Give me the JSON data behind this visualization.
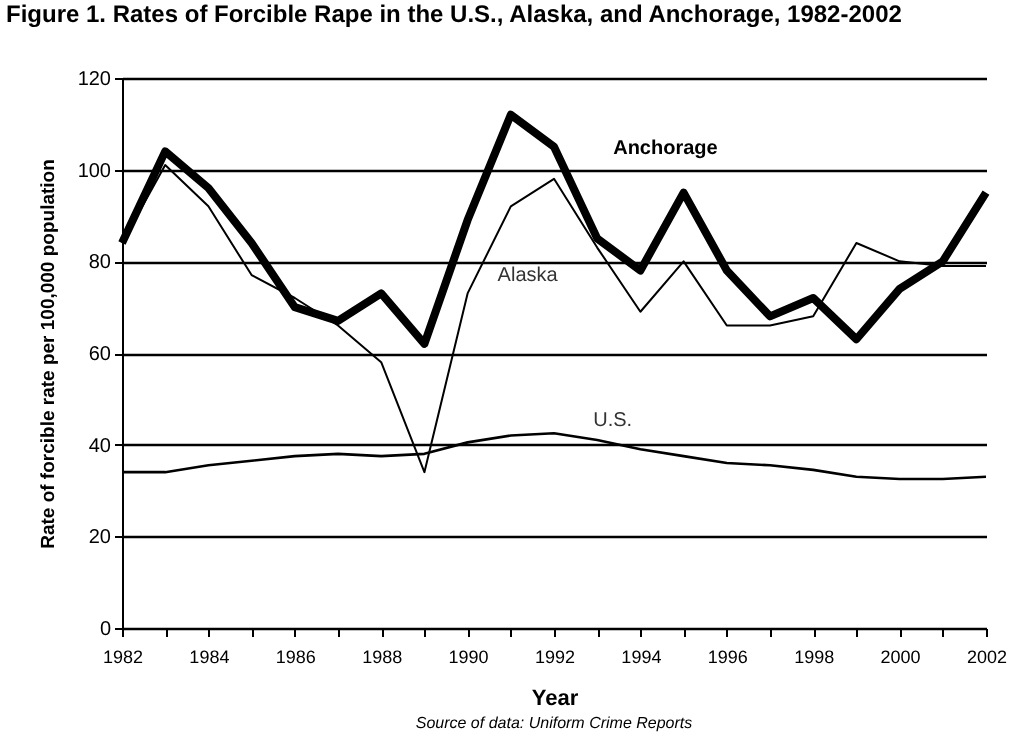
{
  "chart_data": {
    "type": "line",
    "title": "Figure 1. Rates of Forcible Rape in the U.S., Alaska, and Anchorage, 1982-2002",
    "xlabel": "Year",
    "ylabel": "Rate of forcible rate per 100,000 population",
    "annotations": [
      "Source of data: Uniform Crime Reports"
    ],
    "x": [
      1982,
      1983,
      1984,
      1985,
      1986,
      1987,
      1988,
      1989,
      1990,
      1991,
      1992,
      1993,
      1994,
      1995,
      1996,
      1997,
      1998,
      1999,
      2000,
      2001,
      2002
    ],
    "series": [
      {
        "name": "Anchorage",
        "color": "#000000",
        "values": [
          84,
          104,
          96,
          84,
          70,
          67,
          73,
          62,
          89,
          112,
          105,
          85,
          78,
          95,
          78,
          68,
          72,
          63,
          74,
          80,
          95
        ]
      },
      {
        "name": "Alaska",
        "color": "#000000",
        "values": [
          84,
          101,
          92,
          77,
          72,
          66,
          58,
          34,
          73,
          92,
          98,
          83,
          69,
          80,
          66,
          66,
          68,
          84,
          80,
          79,
          79
        ]
      },
      {
        "name": "U.S.",
        "color": "#000000",
        "values": [
          34,
          34,
          35.5,
          36.5,
          37.5,
          38,
          37.5,
          38,
          40.5,
          42,
          42.5,
          41,
          39,
          37.5,
          36,
          35.5,
          34.5,
          33,
          32.5,
          32.5,
          33
        ]
      }
    ],
    "xlim": [
      1982,
      2002
    ],
    "xticks": [
      1982,
      {
        "value": 1983,
        "label": null
      },
      1984,
      {
        "value": 1985,
        "label": null
      },
      1986,
      {
        "value": 1987,
        "label": null
      },
      1988,
      {
        "value": 1989,
        "label": null
      },
      1990,
      {
        "value": 1991,
        "label": null
      },
      1992,
      {
        "value": 1993,
        "label": null
      },
      1994,
      {
        "value": 1995,
        "label": null
      },
      1996,
      {
        "value": 1997,
        "label": null
      },
      1998,
      {
        "value": 1999,
        "label": null
      },
      2000,
      {
        "value": 2001,
        "label": null
      },
      2002
    ],
    "ylim": [
      0,
      120
    ],
    "yticks": [
      0,
      20,
      40,
      60,
      80,
      100,
      120
    ],
    "grid": "y",
    "marker": "none",
    "line_style": "solid"
  }
}
